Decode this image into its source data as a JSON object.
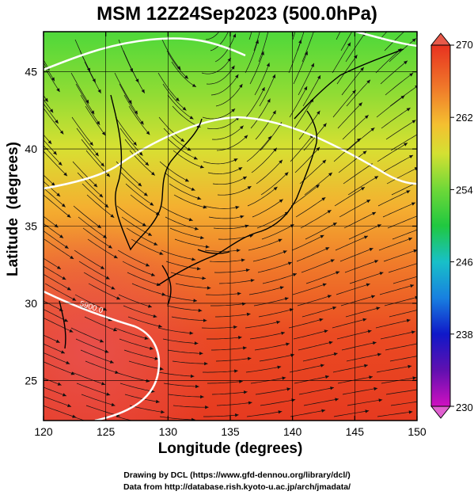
{
  "title": "MSM 12Z24Sep2023 (500.0hPa)",
  "xlabel": "Longitude (degrees)",
  "ylabel": "Latitude  (degrees)",
  "credits": [
    "Drawing by DCL (https://www.gfd-dennou.org/library/dcl/)",
    "Data from http://database.rish.kyoto-u.ac.jp/arch/jmadata/"
  ],
  "contour_label": "5900.0",
  "colors": {
    "warm": "#e8321e",
    "mid": "#f0d838",
    "cool": "#38d43a",
    "grid": "#000000",
    "contour": "#ffffff"
  },
  "chart_data": {
    "type": "heatmap",
    "xlim": [
      120,
      150
    ],
    "ylim": [
      22.4,
      47.6
    ],
    "x_ticks": [
      120,
      125,
      130,
      135,
      140,
      145,
      150
    ],
    "y_ticks": [
      25,
      30,
      35,
      40,
      45
    ],
    "grid": true,
    "colorbar": {
      "min": 230,
      "max": 270,
      "ticks": [
        270,
        262,
        254,
        246,
        238,
        230
      ],
      "position": "right"
    }
  }
}
